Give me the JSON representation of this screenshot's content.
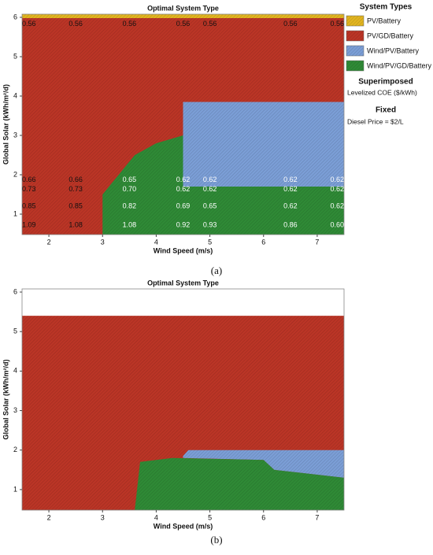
{
  "chart_data": [
    {
      "type": "region",
      "title": "Optimal System Type",
      "x_label": "Wind Speed (m/s)",
      "y_label": "Global Solar (kWh/m²/d)",
      "caption": "(a)",
      "xlim": [
        1.5,
        7.5
      ],
      "ylim": [
        0.48,
        6.08
      ],
      "xticks": [
        2,
        3,
        4,
        5,
        6,
        7
      ],
      "yticks": [
        1,
        2,
        3,
        4,
        5,
        6
      ],
      "legend_title": "System Types",
      "superimposed_title": "Superimposed",
      "superimposed_label": "Levelized COE ($/kWh)",
      "fixed_title": "Fixed",
      "fixed_label": "Diesel Price = $2/L",
      "series": [
        {
          "name": "PV/Battery",
          "color": "#e2b520",
          "x": [
            1.5,
            7.5,
            7.5,
            1.5
          ],
          "values": [
            5.98,
            5.98,
            6.08,
            6.08
          ]
        },
        {
          "name": "PV/GD/Battery",
          "color": "#bb3526",
          "x": [
            1.5,
            7.5,
            7.5,
            1.5
          ],
          "values": [
            0.48,
            0.48,
            5.98,
            5.98
          ]
        },
        {
          "name": "Wind/PV/Battery",
          "color": "#7b9ed6",
          "x": [
            4.5,
            7.5,
            7.5,
            4.5
          ],
          "values": [
            1.7,
            1.7,
            3.85,
            3.85
          ]
        },
        {
          "name": "Wind/PV/GD/Battery",
          "color": "#2f8a36",
          "x": [
            3.0,
            7.5,
            7.5,
            4.5,
            4.5,
            4.0,
            3.6,
            3.3,
            3.0
          ],
          "values": [
            0.48,
            0.48,
            1.7,
            1.7,
            3.0,
            2.8,
            2.5,
            2.0,
            1.5
          ]
        }
      ],
      "coe_labels": {
        "x": [
          1.5,
          2.5,
          3.5,
          4.5,
          5.0,
          6.5,
          7.5,
          1.5,
          2.5,
          3.5,
          4.5,
          5.0,
          6.5,
          7.5,
          1.5,
          2.5,
          3.5,
          4.5,
          5.0,
          6.5,
          7.5,
          1.5,
          2.5,
          3.5,
          4.5,
          5.0,
          6.5,
          7.5,
          1.5,
          2.5,
          3.5,
          4.5,
          5.0,
          6.5,
          7.5
        ],
        "y": [
          5.83,
          5.83,
          5.83,
          5.83,
          5.83,
          5.83,
          5.83,
          1.87,
          1.87,
          1.87,
          1.87,
          1.87,
          1.87,
          1.87,
          1.63,
          1.63,
          1.63,
          1.63,
          1.63,
          1.63,
          1.63,
          1.2,
          1.2,
          1.2,
          1.2,
          1.2,
          1.2,
          1.2,
          0.72,
          0.72,
          0.72,
          0.72,
          0.72,
          0.72,
          0.72
        ],
        "values": [
          0.56,
          0.56,
          0.56,
          0.56,
          0.56,
          0.56,
          0.56,
          0.66,
          0.66,
          0.65,
          0.62,
          0.62,
          0.62,
          0.62,
          0.73,
          0.73,
          0.7,
          0.62,
          0.62,
          0.62,
          0.62,
          0.85,
          0.85,
          0.82,
          0.69,
          0.65,
          0.62,
          0.62,
          1.09,
          1.08,
          1.08,
          0.92,
          0.93,
          0.86,
          0.6
        ],
        "value_labels": [
          "0.56",
          "0.56",
          "0.56",
          "0.56",
          "0.56",
          "0.56",
          "0.56",
          "0.66",
          "0.66",
          "0.65",
          "0.62",
          "0.62",
          "0.62",
          "0.62",
          "0.73",
          "0.73",
          "0.70",
          "0.62",
          "0.62",
          "0.62",
          "0.62",
          "0.85",
          "0.85",
          "0.82",
          "0.69",
          "0.65",
          "0.62",
          "0.62",
          "1.09",
          "1.08",
          "1.08",
          "0.92",
          "0.93",
          "0.86",
          "0.60"
        ]
      }
    },
    {
      "type": "region",
      "title": "Optimal System Type",
      "x_label": "Wind Speed (m/s)",
      "y_label": "Global Solar (kWh/m²/d)",
      "caption": "(b)",
      "xlim": [
        1.5,
        7.5
      ],
      "ylim": [
        0.48,
        6.08
      ],
      "xticks": [
        2,
        3,
        4,
        5,
        6,
        7
      ],
      "yticks": [
        1,
        2,
        3,
        4,
        5,
        6
      ],
      "series": [
        {
          "color": "#bb3526",
          "x": [
            1.5,
            7.5,
            7.5,
            1.5
          ],
          "values": [
            0.48,
            0.48,
            5.4,
            5.4
          ]
        },
        {
          "color": "#7b9ed6",
          "x": [
            4.5,
            4.6,
            7.5,
            7.5,
            6.2,
            6.0,
            4.5
          ],
          "values": [
            1.85,
            2.0,
            2.0,
            1.3,
            1.5,
            1.75,
            1.8
          ]
        },
        {
          "color": "#2f8a36",
          "x": [
            3.6,
            7.5,
            7.5,
            6.2,
            6.0,
            4.3,
            3.7
          ],
          "values": [
            0.48,
            0.48,
            1.3,
            1.5,
            1.75,
            1.8,
            1.7
          ]
        }
      ]
    }
  ]
}
